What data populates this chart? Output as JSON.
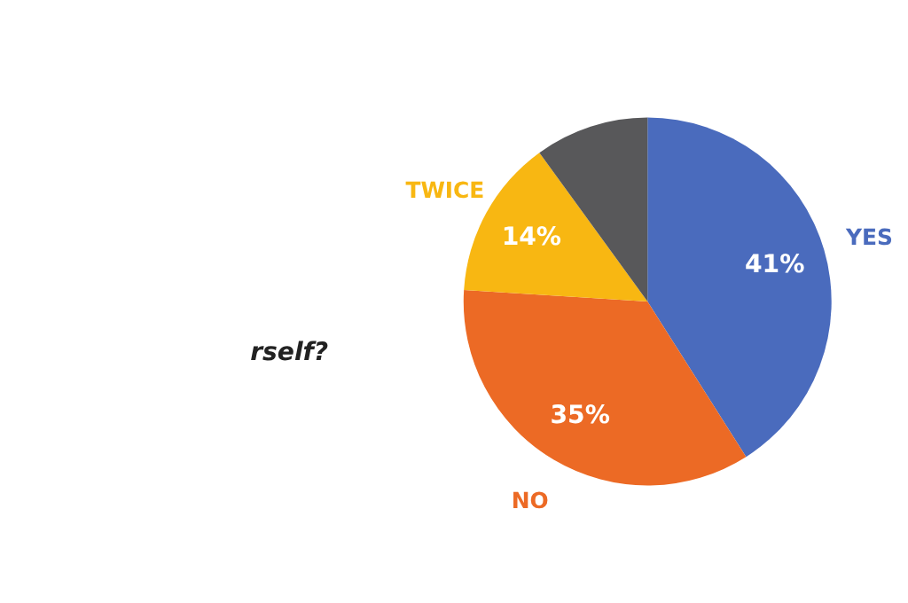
{
  "chart_data": {
    "type": "pie",
    "categories": [
      "YES",
      "NO",
      "TWICE",
      null
    ],
    "values": [
      41,
      35,
      14,
      10
    ],
    "colors": [
      "#4a6bbd",
      "#ec6a25",
      "#f8b712",
      "#58585a"
    ],
    "value_labels": [
      "41%",
      "35%",
      "14%",
      null
    ],
    "annotations": [
      "rself?"
    ],
    "legend": false
  }
}
